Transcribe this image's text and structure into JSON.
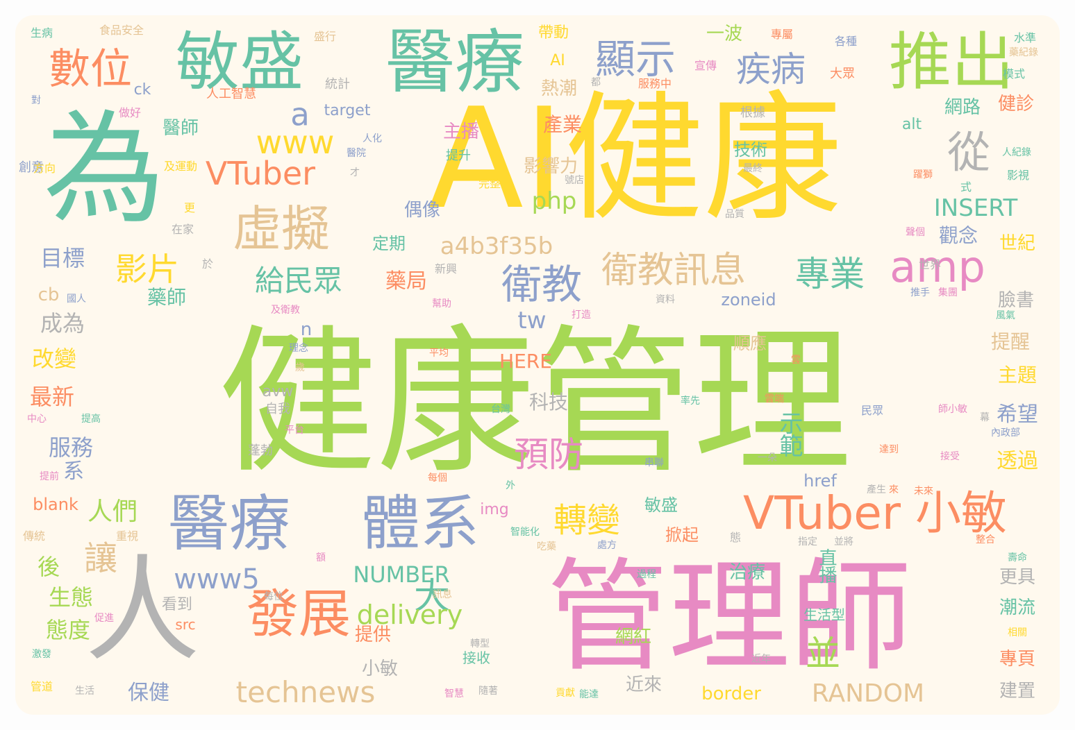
{
  "palette": {
    "teal": "#66c2a5",
    "orange": "#fc8d62",
    "blue": "#8da0cb",
    "pink": "#e78ac3",
    "green": "#a6d854",
    "yellow": "#ffd92f",
    "tan": "#e5c494",
    "grey": "#b3b3b3",
    "background": "#fff9ee"
  },
  "words": [
    {
      "text": "健康管理",
      "color": "green"
    },
    {
      "text": "AI健康",
      "color": "yellow"
    },
    {
      "text": "管理師",
      "color": "pink"
    },
    {
      "text": "為",
      "color": "teal"
    },
    {
      "text": "人",
      "color": "grey"
    },
    {
      "text": "醫療",
      "color": "teal"
    },
    {
      "text": "敏盛",
      "color": "teal"
    },
    {
      "text": "推出",
      "color": "green"
    },
    {
      "text": "醫療",
      "color": "blue"
    },
    {
      "text": "體系",
      "color": "blue"
    },
    {
      "text": "發展",
      "color": "orange"
    },
    {
      "text": "VTuber 小敏",
      "color": "orange"
    },
    {
      "text": "虛擬",
      "color": "tan"
    },
    {
      "text": "數位",
      "color": "orange"
    },
    {
      "text": "顯示",
      "color": "blue"
    },
    {
      "text": "疾病",
      "color": "blue"
    },
    {
      "text": "從",
      "color": "grey"
    },
    {
      "text": "衛教",
      "color": "blue"
    },
    {
      "text": "衛教訊息",
      "color": "tan"
    },
    {
      "text": "amp",
      "color": "pink"
    },
    {
      "text": "專業",
      "color": "teal"
    },
    {
      "text": "VTuber",
      "color": "orange"
    },
    {
      "text": "www",
      "color": "yellow"
    },
    {
      "text": "a",
      "color": "blue"
    },
    {
      "text": "影片",
      "color": "yellow"
    },
    {
      "text": "給民眾",
      "color": "teal"
    },
    {
      "text": "technews",
      "color": "tan"
    },
    {
      "text": "轉變",
      "color": "yellow"
    },
    {
      "text": "預防",
      "color": "pink"
    },
    {
      "text": "www5",
      "color": "blue"
    },
    {
      "text": "讓",
      "color": "tan"
    },
    {
      "text": "大",
      "color": "teal"
    },
    {
      "text": "並",
      "color": "green"
    },
    {
      "text": "delivery",
      "color": "green"
    },
    {
      "text": "RANDOM",
      "color": "tan"
    },
    {
      "text": "a4b3f35b",
      "color": "tan"
    },
    {
      "text": "INSERT",
      "color": "teal"
    },
    {
      "text": "NUMBER",
      "color": "teal"
    },
    {
      "text": "php",
      "color": "green"
    },
    {
      "text": "tw",
      "color": "blue"
    },
    {
      "text": "人們",
      "color": "green"
    },
    {
      "text": "示範",
      "color": "teal"
    },
    {
      "text": "服務",
      "color": "blue"
    },
    {
      "text": "目標",
      "color": "blue"
    },
    {
      "text": "成為",
      "color": "grey"
    },
    {
      "text": "改變",
      "color": "yellow"
    },
    {
      "text": "最新",
      "color": "orange"
    },
    {
      "text": "生態",
      "color": "green"
    },
    {
      "text": "態度",
      "color": "green"
    },
    {
      "text": "後",
      "color": "green"
    },
    {
      "text": "系",
      "color": "blue"
    },
    {
      "text": "希望",
      "color": "blue"
    },
    {
      "text": "透過",
      "color": "yellow"
    },
    {
      "text": "提醒",
      "color": "tan"
    },
    {
      "text": "主題",
      "color": "yellow"
    },
    {
      "text": "觀念",
      "color": "blue"
    },
    {
      "text": "世紀",
      "color": "yellow"
    },
    {
      "text": "臉書",
      "color": "grey"
    },
    {
      "text": "產業",
      "color": "orange"
    },
    {
      "text": "熱潮",
      "color": "tan"
    },
    {
      "text": "影響力",
      "color": "tan"
    },
    {
      "text": "主播",
      "color": "pink"
    },
    {
      "text": "偶像",
      "color": "blue"
    },
    {
      "text": "定期",
      "color": "teal"
    },
    {
      "text": "藥局",
      "color": "orange"
    },
    {
      "text": "藥師",
      "color": "teal"
    },
    {
      "text": "醫師",
      "color": "teal"
    },
    {
      "text": "科技",
      "color": "grey"
    },
    {
      "text": "網路",
      "color": "teal"
    },
    {
      "text": "健診",
      "color": "orange"
    },
    {
      "text": "一波",
      "color": "green"
    },
    {
      "text": "帶動",
      "color": "yellow"
    },
    {
      "text": "AI",
      "color": "yellow"
    },
    {
      "text": "技術",
      "color": "teal"
    },
    {
      "text": "治療",
      "color": "teal"
    },
    {
      "text": "直播",
      "color": "teal"
    },
    {
      "text": "潮流",
      "color": "teal"
    },
    {
      "text": "更具",
      "color": "grey"
    },
    {
      "text": "專頁",
      "color": "orange"
    },
    {
      "text": "建置",
      "color": "grey"
    },
    {
      "text": "保健",
      "color": "blue"
    },
    {
      "text": "提供",
      "color": "orange"
    },
    {
      "text": "網紅",
      "color": "green"
    },
    {
      "text": "近來",
      "color": "grey"
    },
    {
      "text": "border",
      "color": "yellow"
    },
    {
      "text": "順應",
      "color": "tan"
    },
    {
      "text": "掀起",
      "color": "orange"
    },
    {
      "text": "敏盛",
      "color": "teal"
    },
    {
      "text": "zoneid",
      "color": "blue"
    },
    {
      "text": "HERE",
      "color": "orange"
    },
    {
      "text": "href",
      "color": "blue"
    },
    {
      "text": "img",
      "color": "pink"
    },
    {
      "text": "blank",
      "color": "orange"
    },
    {
      "text": "cb",
      "color": "tan"
    },
    {
      "text": "n",
      "color": "blue"
    },
    {
      "text": "ck",
      "color": "blue"
    },
    {
      "text": "target",
      "color": "blue"
    },
    {
      "text": "alt",
      "color": "teal"
    },
    {
      "text": "avw",
      "color": "grey"
    },
    {
      "text": "src",
      "color": "orange"
    },
    {
      "text": "小敏",
      "color": "grey"
    },
    {
      "text": "看到",
      "color": "grey"
    },
    {
      "text": "接收",
      "color": "teal"
    },
    {
      "text": "自我",
      "color": "grey"
    },
    {
      "text": "蓬勃",
      "color": "grey"
    },
    {
      "text": "人工智慧",
      "color": "orange"
    },
    {
      "text": "創意",
      "color": "blue"
    },
    {
      "text": "生病",
      "color": "teal"
    },
    {
      "text": "食品安全",
      "color": "tan"
    },
    {
      "text": "盛行",
      "color": "tan"
    },
    {
      "text": "專屬",
      "color": "orange"
    },
    {
      "text": "各種",
      "color": "blue"
    },
    {
      "text": "水準",
      "color": "teal"
    },
    {
      "text": "藥紀錄",
      "color": "tan"
    },
    {
      "text": "模式",
      "color": "teal"
    },
    {
      "text": "統計",
      "color": "grey"
    },
    {
      "text": "大眾",
      "color": "orange"
    },
    {
      "text": "宣傳",
      "color": "pink"
    },
    {
      "text": "服務中",
      "color": "orange"
    },
    {
      "text": "都",
      "color": "grey"
    },
    {
      "text": "根據",
      "color": "grey"
    },
    {
      "text": "對",
      "color": "blue"
    },
    {
      "text": "做好",
      "color": "pink"
    },
    {
      "text": "方向",
      "color": "yellow"
    },
    {
      "text": "及運動",
      "color": "yellow"
    },
    {
      "text": "人化",
      "color": "blue"
    },
    {
      "text": "醫院",
      "color": "blue"
    },
    {
      "text": "提升",
      "color": "teal"
    },
    {
      "text": "才",
      "color": "grey"
    },
    {
      "text": "完整",
      "color": "yellow"
    },
    {
      "text": "號店",
      "color": "grey"
    },
    {
      "text": "最終",
      "color": "grey"
    },
    {
      "text": "人紀錄",
      "color": "teal"
    },
    {
      "text": "影視",
      "color": "teal"
    },
    {
      "text": "式",
      "color": "teal"
    },
    {
      "text": "躍獅",
      "color": "orange"
    },
    {
      "text": "品質",
      "color": "grey"
    },
    {
      "text": "在家",
      "color": "grey"
    },
    {
      "text": "更",
      "color": "yellow"
    },
    {
      "text": "於",
      "color": "grey"
    },
    {
      "text": "新興",
      "color": "grey"
    },
    {
      "text": "聲個",
      "color": "pink"
    },
    {
      "text": "世界",
      "color": "grey"
    },
    {
      "text": "國人",
      "color": "blue"
    },
    {
      "text": "及衛教",
      "color": "pink"
    },
    {
      "text": "幫助",
      "color": "pink"
    },
    {
      "text": "資料",
      "color": "grey"
    },
    {
      "text": "推手",
      "color": "blue"
    },
    {
      "text": "集團",
      "color": "pink"
    },
    {
      "text": "打造",
      "color": "pink"
    },
    {
      "text": "風氣",
      "color": "teal"
    },
    {
      "text": "理念",
      "color": "blue"
    },
    {
      "text": "平均",
      "color": "orange"
    },
    {
      "text": "歲",
      "color": "tan"
    },
    {
      "text": "雲",
      "color": "orange"
    },
    {
      "text": "中心",
      "color": "pink"
    },
    {
      "text": "提高",
      "color": "teal"
    },
    {
      "text": "平台",
      "color": "pink"
    },
    {
      "text": "台灣",
      "color": "teal"
    },
    {
      "text": "率先",
      "color": "teal"
    },
    {
      "text": "雲端",
      "color": "orange"
    },
    {
      "text": "民眾",
      "color": "blue"
    },
    {
      "text": "師小敏",
      "color": "pink"
    },
    {
      "text": "幕",
      "color": "grey"
    },
    {
      "text": "內政部",
      "color": "blue"
    },
    {
      "text": "串聯",
      "color": "blue"
    },
    {
      "text": "一朵",
      "color": "grey"
    },
    {
      "text": "達到",
      "color": "orange"
    },
    {
      "text": "接受",
      "color": "pink"
    },
    {
      "text": "提前",
      "color": "pink"
    },
    {
      "text": "每個",
      "color": "orange"
    },
    {
      "text": "外",
      "color": "teal"
    },
    {
      "text": "產生",
      "color": "grey"
    },
    {
      "text": "來",
      "color": "orange"
    },
    {
      "text": "未來",
      "color": "orange"
    },
    {
      "text": "傳統",
      "color": "tan"
    },
    {
      "text": "重視",
      "color": "tan"
    },
    {
      "text": "智能化",
      "color": "teal"
    },
    {
      "text": "吃藥",
      "color": "tan"
    },
    {
      "text": "處方",
      "color": "blue"
    },
    {
      "text": "態",
      "color": "grey"
    },
    {
      "text": "指定",
      "color": "grey"
    },
    {
      "text": "並將",
      "color": "grey"
    },
    {
      "text": "整合",
      "color": "orange"
    },
    {
      "text": "額",
      "color": "pink"
    },
    {
      "text": "壽命",
      "color": "teal"
    },
    {
      "text": "過程",
      "color": "teal"
    },
    {
      "text": "每位",
      "color": "grey"
    },
    {
      "text": "訊息",
      "color": "tan"
    },
    {
      "text": "促進",
      "color": "pink"
    },
    {
      "text": "生活型",
      "color": "teal"
    },
    {
      "text": "相關",
      "color": "yellow"
    },
    {
      "text": "激發",
      "color": "teal"
    },
    {
      "text": "轉型",
      "color": "grey"
    },
    {
      "text": "近年",
      "color": "grey"
    },
    {
      "text": "管道",
      "color": "yellow"
    },
    {
      "text": "生活",
      "color": "grey"
    },
    {
      "text": "智慧",
      "color": "pink"
    },
    {
      "text": "隨著",
      "color": "grey"
    },
    {
      "text": "貢獻",
      "color": "yellow"
    },
    {
      "text": "能達",
      "color": "teal"
    }
  ]
}
